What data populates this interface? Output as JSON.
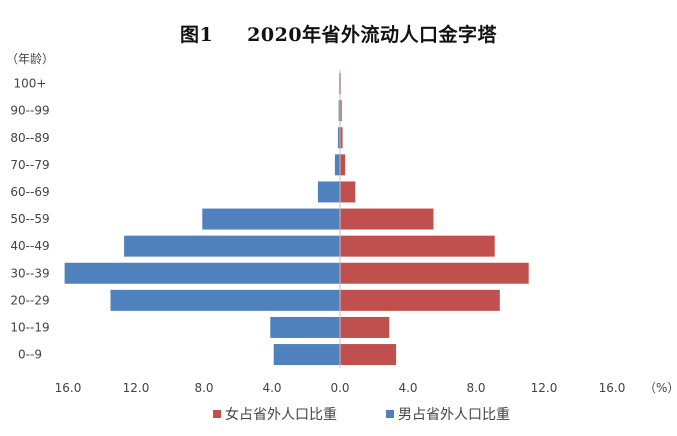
{
  "chart_data": {
    "type": "bar",
    "orientation": "horizontal",
    "title_number": "图1",
    "title": "2020年省外流动人口金字塔",
    "ylabel": "（年龄）",
    "xlabel": "（%）",
    "categories": [
      "100+",
      "90--99",
      "80--89",
      "70--79",
      "60--69",
      "50--59",
      "40--49",
      "30--39",
      "20--29",
      "10--19",
      "0--9"
    ],
    "series": [
      {
        "name": "女占省外人口比重",
        "color": "#c0504d",
        "values": [
          0.05,
          0.1,
          0.15,
          0.3,
          0.9,
          5.5,
          9.1,
          11.1,
          9.4,
          2.9,
          3.3
        ]
      },
      {
        "name": "男占省外人口比重",
        "color": "#4f81bd",
        "values": [
          0.05,
          0.08,
          0.12,
          0.3,
          1.3,
          8.1,
          12.7,
          16.2,
          13.5,
          4.1,
          3.9
        ]
      }
    ],
    "xlim": [
      -16,
      16
    ],
    "xticks": [
      "16.0",
      "12.0",
      "8.0",
      "4.0",
      "0.0",
      "4.0",
      "8.0",
      "12.0",
      "16.0"
    ],
    "grid": false,
    "legend": "bottom"
  }
}
